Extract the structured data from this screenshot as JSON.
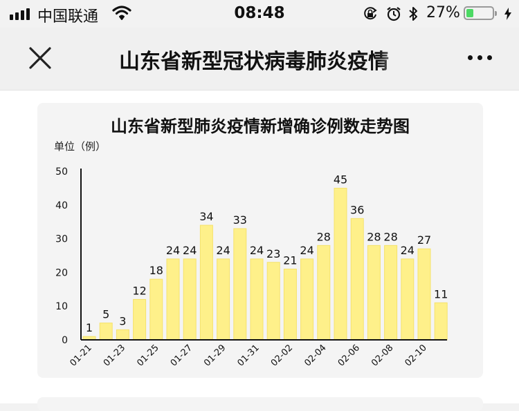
{
  "status_bar": {
    "carrier": "中国联通",
    "time": "08:48",
    "battery_percent": "27%",
    "battery_level": 0.27,
    "icons": [
      "signal-icon",
      "wifi-icon",
      "rotation-lock-icon",
      "alarm-icon",
      "bluetooth-icon",
      "battery-icon",
      "charging-icon"
    ]
  },
  "nav": {
    "title": "山东省新型冠状病毒肺炎疫情",
    "close_icon": "close-icon",
    "more_icon": "more-icon"
  },
  "chart_data": {
    "type": "bar",
    "title": "山东省新型肺炎疫情新增确诊例数走势图",
    "ylabel": "单位（例）",
    "xlabel": "",
    "ylim": [
      0,
      50
    ],
    "yticks": [
      0,
      10,
      20,
      30,
      40,
      50
    ],
    "categories": [
      "01-21",
      "01-22",
      "01-23",
      "01-24",
      "01-25",
      "01-26",
      "01-27",
      "01-28",
      "01-29",
      "01-30",
      "01-31",
      "02-01",
      "02-02",
      "02-03",
      "02-04",
      "02-05",
      "02-06",
      "02-07",
      "02-08",
      "02-09",
      "02-10",
      "02-11"
    ],
    "xtick_labels": [
      "01-21",
      "01-23",
      "01-25",
      "01-27",
      "01-29",
      "01-31",
      "02-02",
      "02-04",
      "02-06",
      "02-08",
      "02-10"
    ],
    "values": [
      1,
      5,
      3,
      12,
      18,
      24,
      24,
      34,
      24,
      33,
      24,
      23,
      21,
      24,
      28,
      45,
      36,
      28,
      28,
      24,
      27,
      11
    ],
    "bar_color": "#fef08a",
    "bar_stroke": "#f5e26b"
  }
}
